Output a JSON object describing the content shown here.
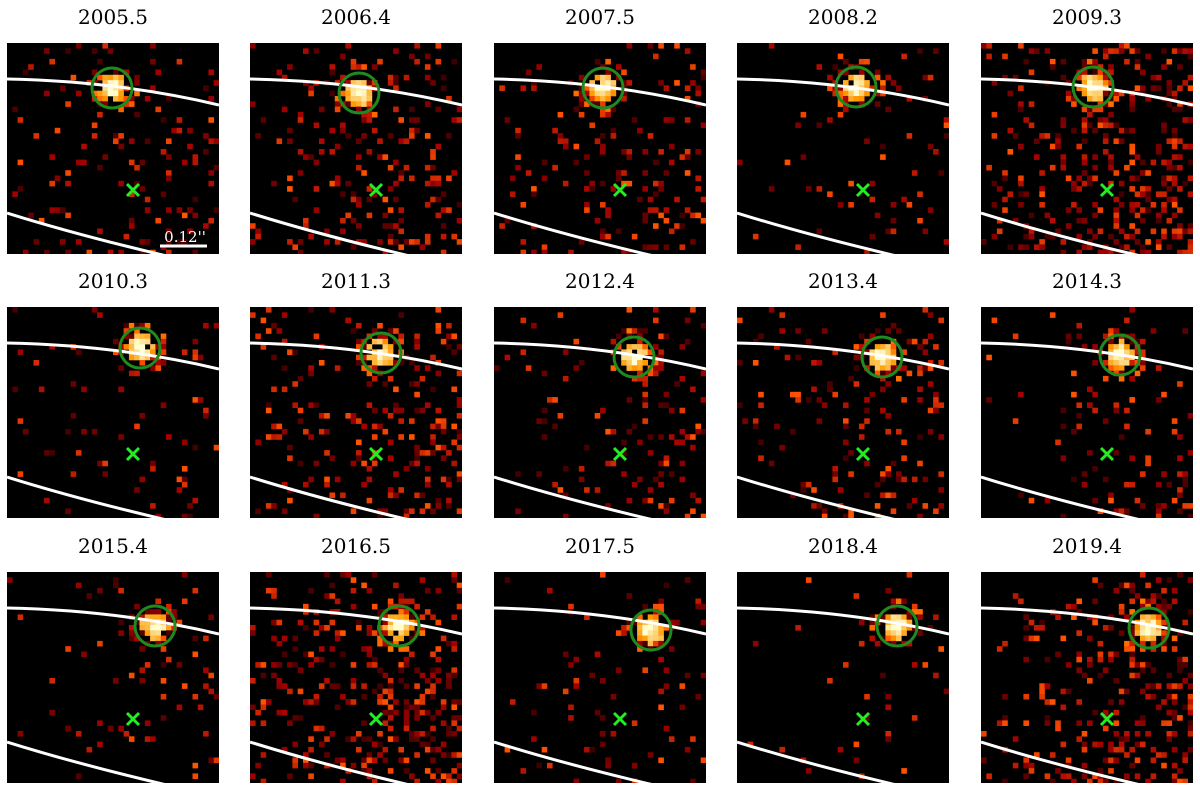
{
  "panels": [
    {
      "title": "2005.5"
    },
    {
      "title": "2006.4"
    },
    {
      "title": "2007.5"
    },
    {
      "title": "2008.2"
    },
    {
      "title": "2009.3"
    },
    {
      "title": "2010.3"
    },
    {
      "title": "2011.3"
    },
    {
      "title": "2012.4"
    },
    {
      "title": "2013.4"
    },
    {
      "title": "2014.3"
    },
    {
      "title": "2015.4"
    },
    {
      "title": "2016.5"
    },
    {
      "title": "2017.5"
    },
    {
      "title": "2018.4"
    },
    {
      "title": "2019.4"
    }
  ],
  "scale_bar": {
    "label": "0.12''"
  }
}
